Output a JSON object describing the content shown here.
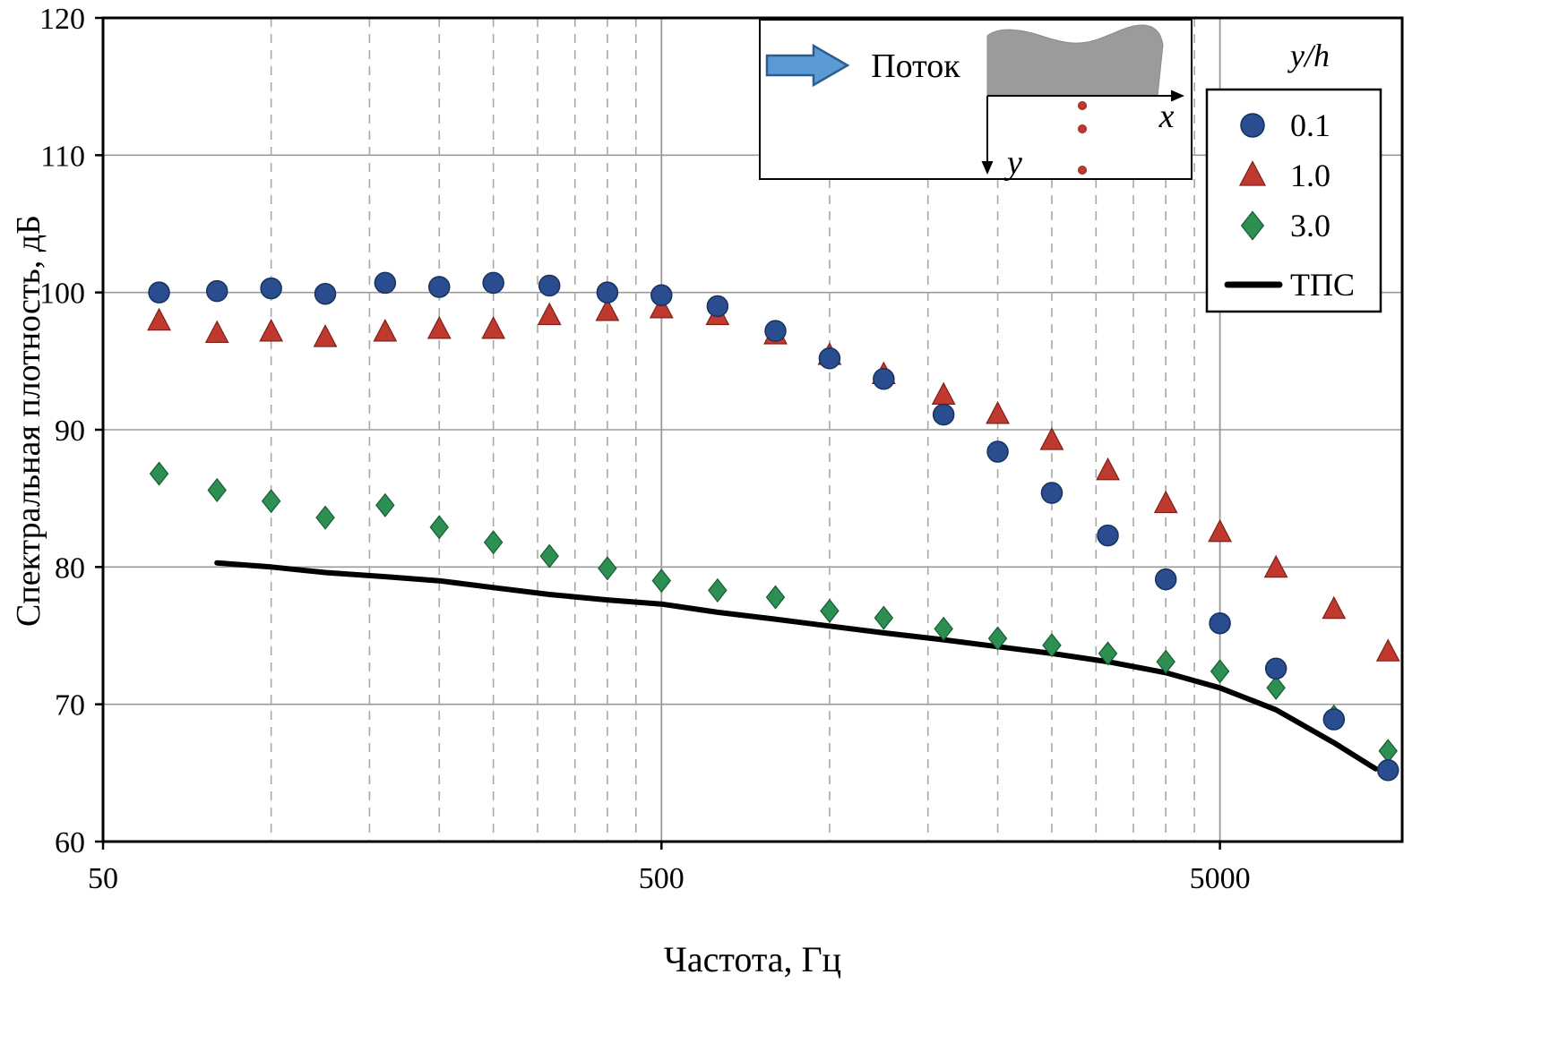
{
  "chart_data": {
    "type": "scatter",
    "title": "",
    "xlabel": "Частота, Гц",
    "ylabel": "Спектральная плотность, дБ",
    "x_scale": "log",
    "xlim": [
      50,
      10000
    ],
    "ylim": [
      60,
      120
    ],
    "x_tick_values": [
      50,
      500,
      5000
    ],
    "x_tick_labels": [
      "50",
      "500",
      "5000"
    ],
    "y_tick_values": [
      60,
      70,
      80,
      90,
      100,
      110,
      120
    ],
    "grid": {
      "hlines": [
        70,
        80,
        90,
        100,
        110
      ],
      "major_vlines": [
        500,
        5000
      ],
      "minor_vlines": [
        100,
        150,
        200,
        250,
        300,
        350,
        400,
        450,
        1000,
        1500,
        2000,
        2500,
        3000,
        3500,
        4000,
        4500
      ]
    },
    "legend": {
      "title": "y/h",
      "position": "top-right",
      "line_label": "ТПС"
    },
    "frequencies": [
      63,
      80,
      100,
      125,
      160,
      200,
      250,
      315,
      400,
      500,
      630,
      800,
      1000,
      1250,
      1600,
      2000,
      2500,
      3150,
      4000,
      5000,
      6300,
      8000,
      10000
    ],
    "series": [
      {
        "name": "0.1",
        "marker": "circle",
        "color": "#2a4d8f",
        "edge": "#16325f",
        "values": [
          100.0,
          100.1,
          100.3,
          99.9,
          100.7,
          100.4,
          100.7,
          100.5,
          100.0,
          99.8,
          99.0,
          97.2,
          95.2,
          93.7,
          91.1,
          88.4,
          85.4,
          82.3,
          79.1,
          75.9,
          72.6,
          68.9,
          65.2
        ]
      },
      {
        "name": "1.0",
        "marker": "triangle",
        "color": "#c0392e",
        "edge": "#7e2018",
        "values": [
          97.9,
          97.0,
          97.1,
          96.7,
          97.1,
          97.3,
          97.3,
          98.3,
          98.6,
          98.8,
          98.3,
          96.9,
          95.4,
          94.0,
          92.5,
          91.1,
          89.2,
          87.0,
          84.6,
          82.5,
          79.9,
          76.9,
          73.8
        ]
      },
      {
        "name": "3.0",
        "marker": "diamond",
        "color": "#2e8f52",
        "edge": "#175c33",
        "values": [
          86.8,
          85.6,
          84.8,
          83.6,
          84.5,
          82.9,
          81.8,
          80.8,
          79.9,
          79.0,
          78.3,
          77.8,
          76.8,
          76.3,
          75.5,
          74.8,
          74.3,
          73.7,
          73.1,
          72.4,
          71.2,
          69.1,
          66.6
        ]
      }
    ],
    "line_series": {
      "name": "ТПС",
      "color": "#000000",
      "points": [
        [
          80,
          80.3
        ],
        [
          100,
          80.0
        ],
        [
          125,
          79.6
        ],
        [
          160,
          79.3
        ],
        [
          200,
          79.0
        ],
        [
          250,
          78.5
        ],
        [
          315,
          78.0
        ],
        [
          400,
          77.6
        ],
        [
          500,
          77.3
        ],
        [
          630,
          76.7
        ],
        [
          800,
          76.2
        ],
        [
          1000,
          75.7
        ],
        [
          1250,
          75.2
        ],
        [
          1600,
          74.7
        ],
        [
          2000,
          74.2
        ],
        [
          2500,
          73.7
        ],
        [
          3150,
          73.1
        ],
        [
          4000,
          72.3
        ],
        [
          5000,
          71.2
        ],
        [
          6300,
          69.6
        ],
        [
          8000,
          67.2
        ],
        [
          9500,
          65.3
        ]
      ]
    }
  },
  "inset": {
    "flow_label": "Поток",
    "x_axis_label": "x",
    "y_axis_label": "y",
    "probe_dot_count": 3,
    "body_color": "#9b9b9b",
    "arrow_fill": "#5b9bd5",
    "arrow_edge": "#2b5d8f",
    "dot_color": "#c0392e"
  }
}
